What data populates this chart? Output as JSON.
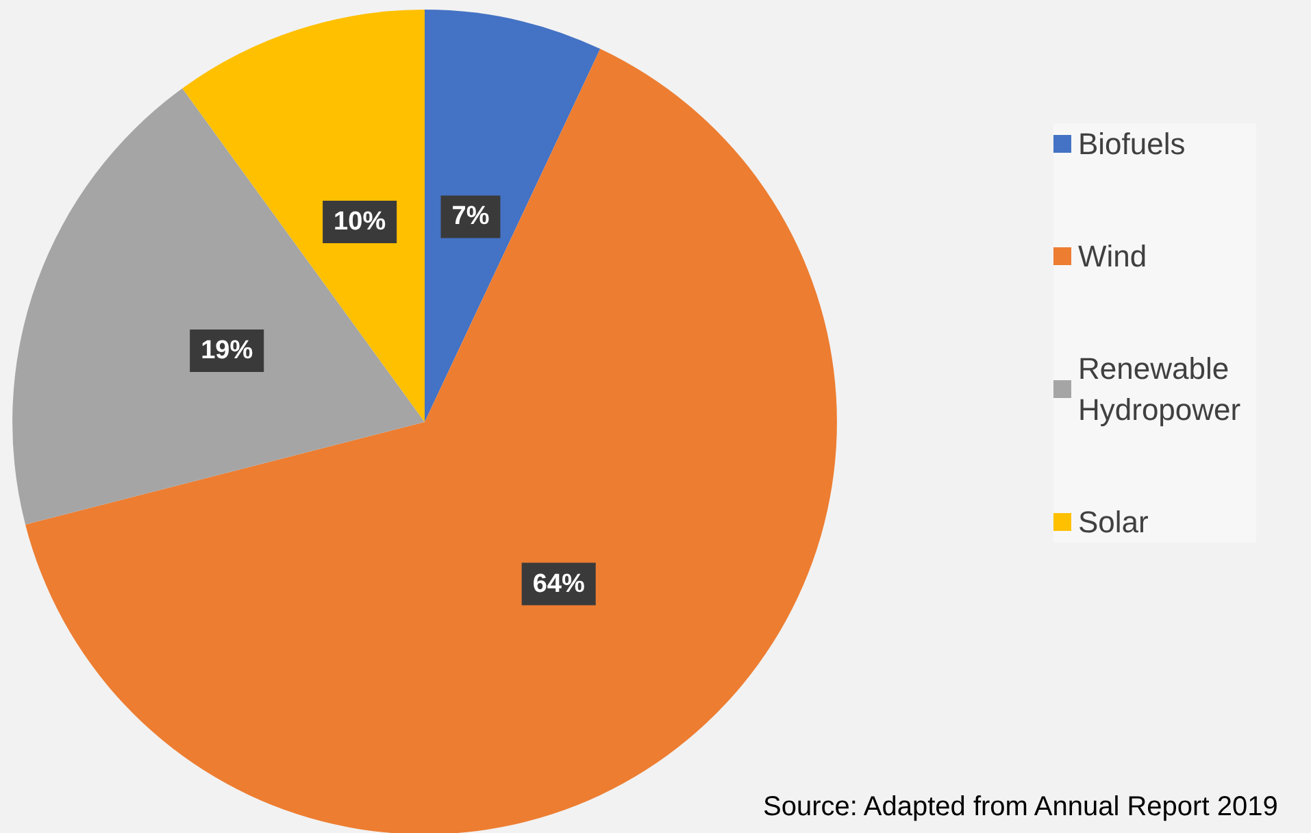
{
  "chart_data": {
    "type": "pie",
    "categories": [
      "Biofuels",
      "Wind",
      "Renewable Hydropower",
      "Solar"
    ],
    "values": [
      7,
      64,
      19,
      10
    ],
    "colors": [
      "#4472c4",
      "#ed7d31",
      "#a5a5a5",
      "#ffc000"
    ],
    "value_labels": [
      "7%",
      "64%",
      "19%",
      "10%"
    ],
    "legend": "right",
    "annotations": [
      "Source: Adapted from Annual Report 2019"
    ]
  }
}
